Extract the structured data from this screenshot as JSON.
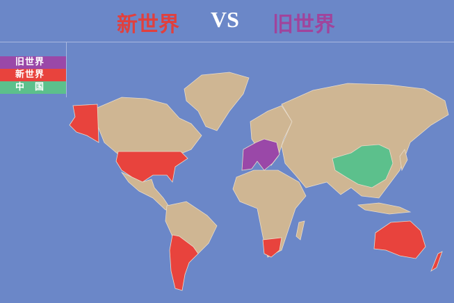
{
  "title": {
    "new_world": "新世界",
    "vs": "VS",
    "old_world": "旧世界"
  },
  "legend": [
    {
      "label": "旧世界",
      "color": "#9a48a8"
    },
    {
      "label": "新世界",
      "color": "#e8433d"
    },
    {
      "label": "中　国",
      "color": "#5cc08c"
    }
  ],
  "colors": {
    "ocean": "#6b87c8",
    "land": "#cfb693",
    "new_world": "#e8433d",
    "old_world": "#9a48a8",
    "china": "#5cc08c"
  },
  "regions": {
    "new_world": [
      "Alaska",
      "United States",
      "Chile",
      "Argentina",
      "South Africa",
      "Australia",
      "New Zealand"
    ],
    "old_world": [
      "France",
      "Spain",
      "Portugal",
      "Italy",
      "Germany",
      "Austria",
      "Hungary"
    ],
    "china": [
      "China"
    ]
  }
}
